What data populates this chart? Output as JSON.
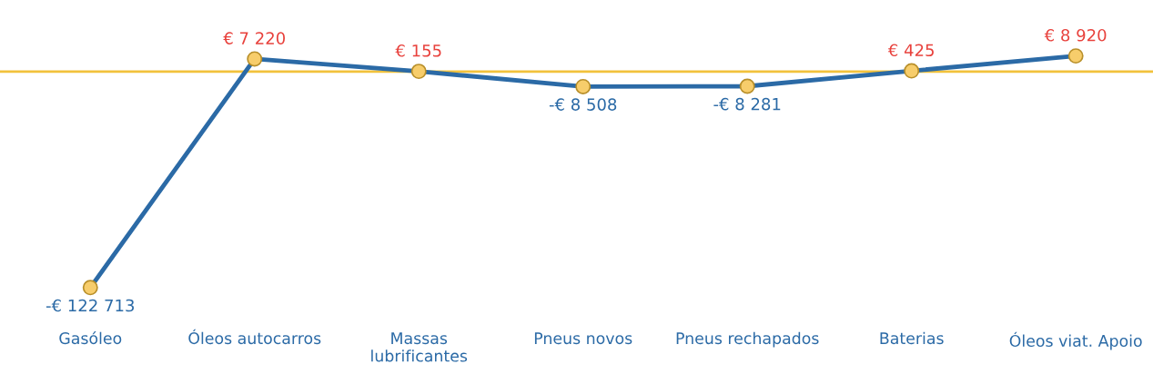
{
  "chart_data": {
    "type": "line",
    "categories": [
      "Gasóleo",
      "Óleos autocarros",
      "Massas\nlubrificantes",
      "Pneus novos",
      "Pneus rechapados",
      "Baterias",
      "Óleos viat. Apoio"
    ],
    "series": [
      {
        "color": "#2b6aa6",
        "values": [
          -122713,
          7220,
          155,
          -8508,
          -8281,
          425,
          8920
        ],
        "value_labels": [
          "-€ 122 713",
          "€ 7 220",
          "€ 155",
          "-€ 8 508",
          "-€ 8 281",
          "€ 425",
          "€ 8 920"
        ]
      }
    ],
    "marker": "circle",
    "line_style": "solid",
    "tick_labels": "x",
    "ref_lines": [
      {
        "axis": "y",
        "value": 0,
        "color": "#f2c23c",
        "line_style": "solid"
      }
    ]
  }
}
